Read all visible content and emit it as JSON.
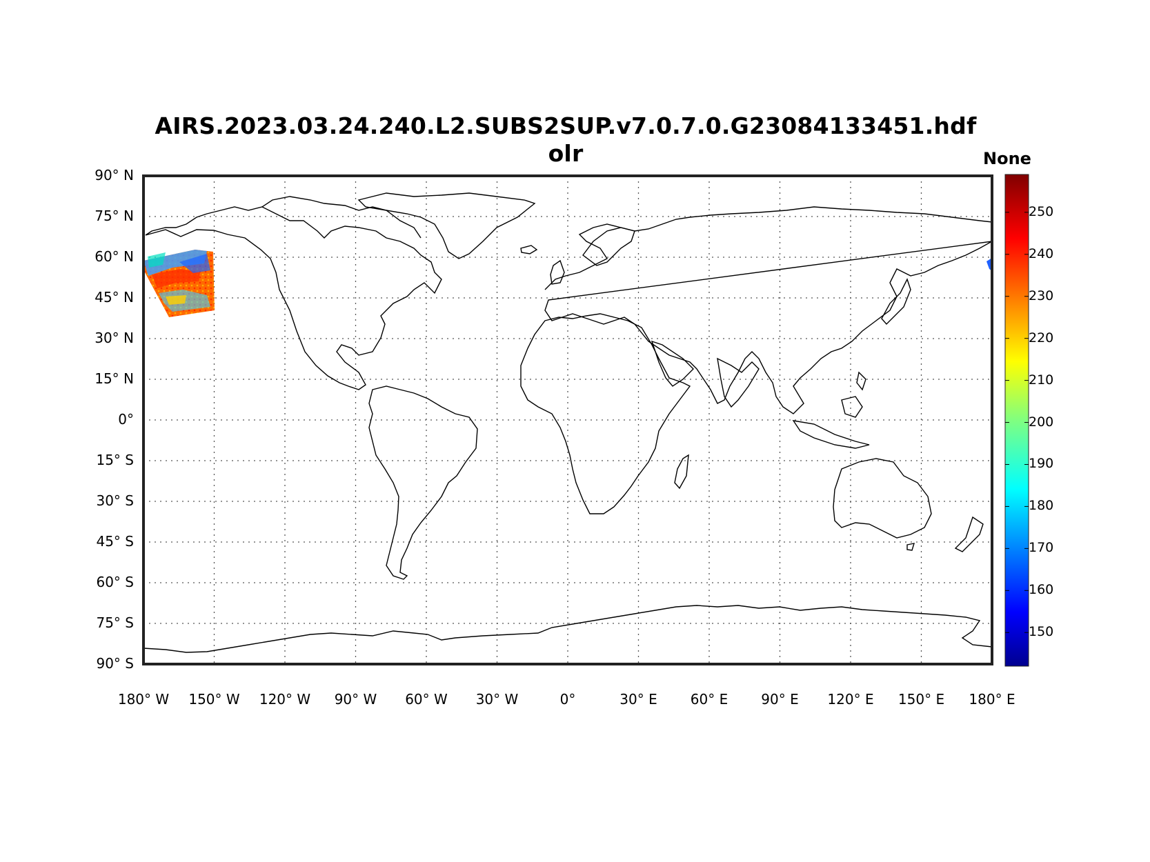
{
  "title": {
    "line1": "AIRS.2023.03.24.240.L2.SUBS2SUP.v7.0.7.0.G23084133451.hdf",
    "line2": "olr"
  },
  "colorbar": {
    "label": "None",
    "ticks": [
      "250",
      "240",
      "230",
      "220",
      "210",
      "200",
      "190",
      "180",
      "170",
      "160",
      "150"
    ],
    "range": [
      142,
      259
    ],
    "colormap": "jet"
  },
  "map": {
    "projection": "equirectangular",
    "lon_range": [
      -180,
      180
    ],
    "lat_range": [
      -90,
      90
    ],
    "grid": "dotted",
    "x_ticks": [
      "180° W",
      "150° W",
      "120° W",
      "90° W",
      "60° W",
      "30° W",
      "0°",
      "30° E",
      "60° E",
      "90° E",
      "120° E",
      "150° E",
      "180° E"
    ],
    "y_ticks": [
      "90° N",
      "75° N",
      "60° N",
      "45° N",
      "30° N",
      "15° N",
      "0°",
      "15° S",
      "30° S",
      "45° S",
      "60° S",
      "75° S",
      "90° S"
    ],
    "data_swath": {
      "lon_range": [
        -180,
        -150
      ],
      "lat_range": [
        39,
        61
      ],
      "values_range": [
        180,
        250
      ]
    }
  },
  "colors": {
    "coastline": "#000000",
    "frame": "#222222",
    "grid": "#555555"
  }
}
